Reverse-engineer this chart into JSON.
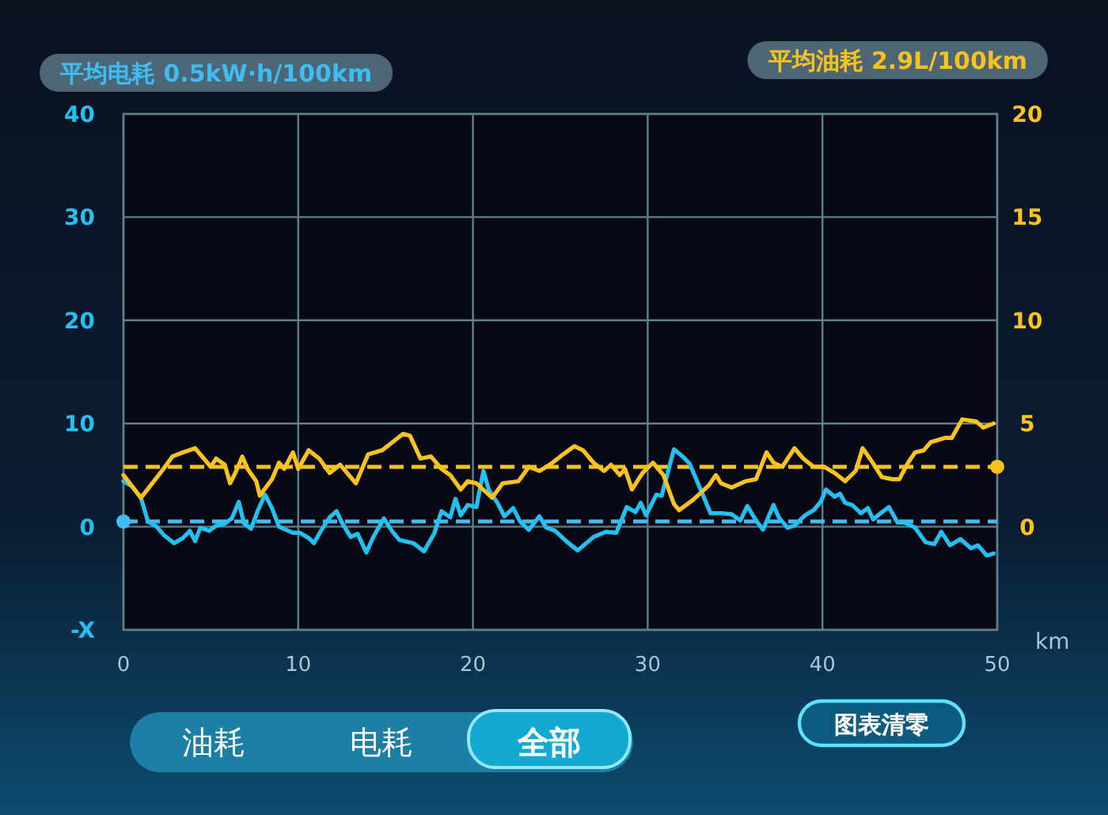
{
  "chart_data": {
    "type": "line",
    "xlim": [
      0,
      50
    ],
    "xticks": [
      0,
      10,
      20,
      30,
      40,
      50
    ],
    "xlabel": "km",
    "ylim": [
      -10,
      40
    ],
    "yticks": [
      {
        "value": -10,
        "label": "-X"
      },
      0,
      10,
      20,
      30,
      40
    ],
    "y2lim": [
      -5,
      20
    ],
    "y2ticks": [
      0,
      5,
      10,
      15,
      20
    ],
    "grid": true,
    "series": [
      {
        "color": "#22c1f2",
        "axis": "y",
        "x": [
          0,
          0.5,
          1.0,
          1.4,
          1.9,
          2.3,
          2.9,
          3.4,
          3.8,
          4.1,
          4.4,
          4.9,
          5.3,
          5.8,
          6.2,
          6.6,
          6.9,
          7.3,
          7.7,
          8.1,
          8.5,
          8.9,
          9.7,
          10.1,
          10.6,
          10.9,
          11.3,
          11.8,
          12.2,
          12.5,
          13.0,
          13.4,
          13.9,
          14.3,
          14.9,
          15.4,
          15.8,
          16.6,
          17.2,
          17.8,
          18.2,
          18.7,
          19.0,
          19.3,
          19.7,
          20.2,
          20.6,
          20.9,
          21.4,
          21.8,
          22.3,
          22.7,
          23.2,
          23.8,
          24.2,
          24.7,
          25.4,
          26.0,
          26.9,
          27.6,
          28.2,
          28.8,
          29.3,
          29.6,
          29.9,
          30.5,
          30.8,
          31.5,
          32.0,
          32.4,
          33.2,
          33.6,
          34.2,
          34.8,
          35.3,
          35.7,
          36.2,
          36.6,
          37.2,
          37.5,
          38.0,
          38.4,
          39.0,
          39.5,
          39.9,
          40.2,
          40.7,
          41.0,
          41.3,
          41.7,
          42.2,
          42.6,
          42.9,
          43.4,
          43.8,
          44.3,
          44.7,
          45.3,
          45.9,
          46.4,
          46.8,
          47.3,
          47.9,
          48.5,
          48.9,
          49.4,
          49.8
        ],
        "values": [
          4.4,
          3.9,
          2.8,
          0.5,
          0.0,
          -0.8,
          -1.6,
          -1.1,
          -0.4,
          -1.4,
          -0.1,
          -0.4,
          0.1,
          0.3,
          0.8,
          2.4,
          0.3,
          -0.2,
          1.6,
          3.1,
          1.8,
          0.0,
          -0.6,
          -0.6,
          -1.1,
          -1.6,
          -0.4,
          0.9,
          1.5,
          0.4,
          -1.0,
          -0.7,
          -2.5,
          -1.0,
          0.8,
          -0.5,
          -1.3,
          -1.6,
          -2.4,
          -0.6,
          1.5,
          0.9,
          2.7,
          1.1,
          2.1,
          1.9,
          5.4,
          3.6,
          2.3,
          1.0,
          1.8,
          0.5,
          -0.3,
          1.0,
          -0.1,
          -0.4,
          -1.5,
          -2.3,
          -1.0,
          -0.5,
          -0.6,
          1.9,
          1.4,
          2.3,
          1.1,
          3.1,
          3.0,
          7.5,
          6.8,
          6.1,
          2.9,
          1.3,
          1.3,
          1.2,
          0.6,
          2.0,
          0.6,
          -0.3,
          2.1,
          0.9,
          -0.1,
          0.1,
          1.1,
          1.6,
          2.4,
          3.6,
          2.9,
          3.2,
          2.3,
          2.1,
          1.3,
          1.8,
          0.7,
          1.4,
          1.9,
          0.4,
          0.4,
          -0.1,
          -1.5,
          -1.7,
          -0.5,
          -1.8,
          -1.2,
          -2.1,
          -1.8,
          -2.8,
          -2.6
        ]
      },
      {
        "color": "#fbc31c",
        "axis": "y2",
        "x": [
          0,
          1.0,
          2.2,
          2.8,
          3.4,
          4.1,
          4.6,
          5.0,
          5.3,
          5.8,
          6.1,
          6.4,
          6.8,
          7.1,
          7.6,
          7.8,
          8.5,
          8.9,
          9.2,
          9.7,
          10.0,
          10.6,
          11.2,
          11.8,
          12.4,
          12.8,
          13.3,
          13.6,
          14.0,
          14.8,
          15.4,
          16.0,
          16.4,
          17.0,
          17.6,
          18.2,
          18.7,
          19.3,
          19.7,
          20.2,
          21.1,
          21.7,
          22.6,
          23.2,
          23.8,
          24.4,
          25.0,
          25.8,
          26.3,
          26.9,
          27.5,
          27.9,
          28.4,
          28.7,
          29.1,
          29.7,
          30.3,
          30.9,
          31.5,
          31.8,
          32.6,
          33.5,
          33.9,
          34.2,
          34.8,
          35.6,
          36.2,
          36.8,
          37.2,
          37.7,
          38.4,
          38.9,
          39.5,
          40.1,
          40.7,
          41.3,
          41.9,
          42.3,
          42.8,
          43.4,
          44.0,
          44.4,
          44.9,
          45.3,
          45.8,
          46.2,
          47.0,
          47.4,
          48.0,
          48.8,
          49.2,
          49.8
        ],
        "values": [
          2.5,
          1.4,
          2.7,
          3.4,
          3.6,
          3.8,
          3.3,
          2.9,
          3.3,
          3.0,
          2.1,
          2.6,
          3.4,
          2.8,
          2.2,
          1.5,
          2.3,
          3.1,
          2.8,
          3.6,
          2.8,
          3.7,
          3.3,
          2.6,
          3.0,
          2.6,
          2.1,
          2.7,
          3.5,
          3.7,
          4.1,
          4.5,
          4.4,
          3.3,
          3.4,
          2.8,
          2.5,
          1.8,
          2.2,
          2.1,
          1.4,
          2.1,
          2.2,
          2.9,
          2.7,
          3.0,
          3.4,
          3.9,
          3.7,
          3.1,
          2.7,
          3.0,
          2.5,
          2.8,
          1.8,
          2.6,
          3.1,
          2.5,
          1.1,
          0.8,
          1.3,
          2.0,
          2.5,
          2.1,
          1.9,
          2.2,
          2.3,
          3.6,
          3.1,
          2.9,
          3.8,
          3.3,
          2.9,
          2.9,
          2.6,
          2.2,
          2.7,
          3.8,
          3.2,
          2.4,
          2.3,
          2.3,
          3.1,
          3.6,
          3.7,
          4.1,
          4.3,
          4.3,
          5.2,
          5.1,
          4.8,
          5.0
        ]
      }
    ],
    "ref_lines": [
      {
        "axis": "y",
        "value": 0.5,
        "label": "平均电耗 0.5kW·h/100km",
        "color": "#3fbcf2",
        "line_style": "dashed"
      },
      {
        "axis": "y2",
        "value": 2.9,
        "label": "平均油耗 2.9L/100km",
        "color": "#f7c21e",
        "line_style": "dashed"
      }
    ],
    "annotations": [
      "油耗",
      "电耗",
      "全部",
      "图表清零"
    ]
  }
}
